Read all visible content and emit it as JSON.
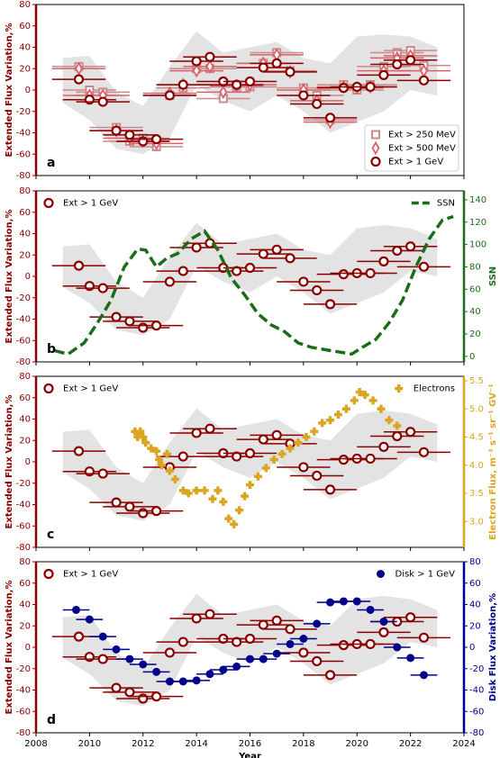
{
  "chart_data": [
    {
      "type": "scatter",
      "label": "a",
      "ylabel": "Extended Flux Variation,%",
      "ycolor": "#8b0000",
      "xlim": [
        2008,
        2024
      ],
      "xticks": [
        2008,
        2010,
        2012,
        2014,
        2016,
        2018,
        2020,
        2022,
        2024
      ],
      "ylim": [
        -80,
        80
      ],
      "yticks": [
        -80,
        -60,
        -40,
        -20,
        0,
        20,
        40,
        60,
        80
      ],
      "legend_loc": "lower right",
      "band": {
        "x": [
          2009,
          2010,
          2011,
          2012,
          2013,
          2014,
          2015,
          2016,
          2017,
          2018,
          2019,
          2020,
          2021,
          2022,
          2023
        ],
        "upper": [
          30,
          32,
          -2,
          -15,
          22,
          55,
          35,
          40,
          45,
          30,
          25,
          50,
          52,
          50,
          40
        ],
        "lower": [
          -12,
          -28,
          -55,
          -60,
          -45,
          5,
          -10,
          -20,
          -5,
          -20,
          -40,
          -30,
          -20,
          0,
          -5
        ]
      },
      "series": [
        {
          "name": "Ext > 250 MeV",
          "color": "#c98a8a",
          "type": "errorbar",
          "marker": "square-open",
          "xerr": 1,
          "yerr": 4,
          "x": [
            2009.6,
            2010.0,
            2010.5,
            2011.0,
            2011.5,
            2012.0,
            2012.5,
            2013.0,
            2013.5,
            2014.0,
            2014.5,
            2015.0,
            2015.5,
            2016.0,
            2016.5,
            2017.0,
            2017.5,
            2018.0,
            2018.5,
            2019.0,
            2019.5,
            2020.0,
            2020.5,
            2021.0,
            2021.5,
            2022.0,
            2022.5
          ],
          "values": [
            22,
            0,
            -2,
            -35,
            -48,
            -45,
            -53,
            -5,
            2,
            20,
            20,
            -8,
            3,
            3,
            25,
            35,
            18,
            2,
            -5,
            -28,
            5,
            0,
            5,
            22,
            35,
            37,
            23
          ]
        },
        {
          "name": "Ext > 500 MeV",
          "color": "#d9606a",
          "type": "errorbar",
          "marker": "diamond",
          "xerr": 1,
          "yerr": 4,
          "x": [
            2009.6,
            2010.0,
            2010.5,
            2011.0,
            2011.5,
            2012.0,
            2012.5,
            2013.0,
            2013.5,
            2014.0,
            2014.5,
            2015.0,
            2015.5,
            2016.0,
            2016.5,
            2017.0,
            2017.5,
            2018.0,
            2018.5,
            2019.0,
            2019.5,
            2020.0,
            2020.5,
            2021.0,
            2021.5,
            2022.0,
            2022.5
          ],
          "values": [
            20,
            -5,
            -5,
            -38,
            -45,
            -48,
            -50,
            -3,
            5,
            18,
            22,
            -2,
            4,
            5,
            25,
            33,
            17,
            0,
            -10,
            -30,
            3,
            2,
            3,
            18,
            30,
            32,
            18
          ]
        },
        {
          "name": "Ext > 1 GeV",
          "color": "#8b0000",
          "type": "errorbar",
          "marker": "circle-open",
          "xerr": 1,
          "yerr": 4,
          "x": [
            2009.6,
            2010.0,
            2010.5,
            2011.0,
            2011.5,
            2012.0,
            2012.5,
            2013.0,
            2013.5,
            2014.0,
            2014.5,
            2015.0,
            2015.5,
            2016.0,
            2016.5,
            2017.0,
            2017.5,
            2018.0,
            2018.5,
            2019.0,
            2019.5,
            2020.0,
            2020.5,
            2021.0,
            2021.5,
            2022.0,
            2022.5
          ],
          "values": [
            10,
            -9,
            -11,
            -38,
            -42,
            -48,
            -46,
            -5,
            5,
            27,
            31,
            8,
            5,
            8,
            21,
            25,
            17,
            -5,
            -13,
            -26,
            2,
            3,
            3,
            14,
            24,
            28,
            9
          ]
        }
      ]
    },
    {
      "type": "scatter",
      "label": "b",
      "ylabel": "Extended Flux Variation,%",
      "ycolor": "#8b0000",
      "y2label": "SSN",
      "y2color": "#1a6e1a",
      "xlim": [
        2008,
        2024
      ],
      "xticks": [
        2008,
        2010,
        2012,
        2014,
        2016,
        2018,
        2020,
        2022,
        2024
      ],
      "ylim": [
        -80,
        80
      ],
      "yticks": [
        -80,
        -60,
        -40,
        -20,
        0,
        20,
        40,
        60,
        80
      ],
      "y2lim": [
        -5,
        148
      ],
      "y2ticks": [
        0,
        20,
        40,
        60,
        80,
        100,
        120,
        140
      ],
      "legend_loc": "upper left",
      "legend2_loc": "upper right",
      "band": {
        "x": [
          2009,
          2010,
          2011,
          2012,
          2013,
          2014,
          2015,
          2016,
          2017,
          2018,
          2019,
          2020,
          2021,
          2022,
          2023
        ],
        "upper": [
          28,
          30,
          -5,
          -20,
          18,
          50,
          30,
          35,
          40,
          25,
          20,
          45,
          48,
          45,
          35
        ],
        "lower": [
          -10,
          -25,
          -50,
          -55,
          -40,
          10,
          -5,
          -15,
          0,
          -15,
          -35,
          -25,
          -15,
          5,
          0
        ]
      },
      "series": [
        {
          "name": "Ext > 1 GeV",
          "color": "#8b0000",
          "type": "errorbar",
          "marker": "circle-open",
          "xerr": 1,
          "yerr": 4,
          "x": [
            2009.6,
            2010.0,
            2010.5,
            2011.0,
            2011.5,
            2012.0,
            2012.5,
            2013.0,
            2013.5,
            2014.0,
            2014.5,
            2015.0,
            2015.5,
            2016.0,
            2016.5,
            2017.0,
            2017.5,
            2018.0,
            2018.5,
            2019.0,
            2019.5,
            2020.0,
            2020.5,
            2021.0,
            2021.5,
            2022.0,
            2022.5
          ],
          "values": [
            10,
            -9,
            -11,
            -38,
            -42,
            -48,
            -46,
            -5,
            5,
            27,
            31,
            8,
            5,
            8,
            21,
            25,
            17,
            -5,
            -13,
            -26,
            2,
            3,
            3,
            14,
            24,
            28,
            9
          ]
        },
        {
          "name": "SSN",
          "color": "#1a6e1a",
          "type": "line",
          "axis": "y2",
          "x": [
            2008.7,
            2009.2,
            2009.8,
            2010.3,
            2010.8,
            2011.3,
            2011.8,
            2012.1,
            2012.5,
            2012.9,
            2013.3,
            2013.8,
            2014.3,
            2014.8,
            2015.3,
            2015.8,
            2016.3,
            2016.8,
            2017.3,
            2017.8,
            2018.3,
            2018.8,
            2019.3,
            2019.8,
            2020.2,
            2020.7,
            2021.2,
            2021.7,
            2022.2,
            2022.7,
            2023.2,
            2023.6
          ],
          "values": [
            5,
            2,
            12,
            30,
            50,
            80,
            96,
            95,
            80,
            88,
            92,
            105,
            112,
            95,
            70,
            55,
            38,
            28,
            22,
            12,
            8,
            6,
            4,
            2,
            8,
            15,
            30,
            50,
            80,
            105,
            122,
            125
          ]
        }
      ]
    },
    {
      "type": "scatter",
      "label": "c",
      "ylabel": "Extended Flux Variation,%",
      "ycolor": "#8b0000",
      "y2label": "Electron Flux, m⁻² s⁻¹ sr⁻¹ GV⁻¹",
      "y2color": "#daa520",
      "xlim": [
        2008,
        2024
      ],
      "xticks": [
        2008,
        2010,
        2012,
        2014,
        2016,
        2018,
        2020,
        2022,
        2024
      ],
      "ylim": [
        -80,
        80
      ],
      "yticks": [
        -80,
        -60,
        -40,
        -20,
        0,
        20,
        40,
        60,
        80
      ],
      "y2lim": [
        2.54,
        5.58
      ],
      "y2ticks": [
        {
          "value": 3,
          "label": "3.0"
        },
        3.5,
        {
          "value": 4,
          "label": "4.0"
        },
        4.5,
        {
          "value": 5,
          "label": "5.0"
        },
        5.5
      ],
      "legend_loc": "upper left",
      "legend2_loc": "upper right",
      "band": {
        "x": [
          2009,
          2010,
          2011,
          2012,
          2013,
          2014,
          2015,
          2016,
          2017,
          2018,
          2019,
          2020,
          2021,
          2022,
          2023
        ],
        "upper": [
          28,
          30,
          -5,
          -20,
          18,
          50,
          30,
          35,
          40,
          25,
          20,
          45,
          48,
          45,
          35
        ],
        "lower": [
          -10,
          -25,
          -50,
          -55,
          -40,
          10,
          -5,
          -15,
          0,
          -15,
          -35,
          -25,
          -15,
          5,
          0
        ]
      },
      "series": [
        {
          "name": "Ext > 1 GeV",
          "color": "#8b0000",
          "type": "errorbar",
          "marker": "circle-open",
          "xerr": 1,
          "yerr": 4,
          "x": [
            2009.6,
            2010.0,
            2010.5,
            2011.0,
            2011.5,
            2012.0,
            2012.5,
            2013.0,
            2013.5,
            2014.0,
            2014.5,
            2015.0,
            2015.5,
            2016.0,
            2016.5,
            2017.0,
            2017.5,
            2018.0,
            2018.5,
            2019.0,
            2019.5,
            2020.0,
            2020.5,
            2021.0,
            2021.5,
            2022.0,
            2022.5
          ],
          "values": [
            10,
            -9,
            -11,
            -38,
            -42,
            -48,
            -46,
            -5,
            5,
            27,
            31,
            8,
            5,
            8,
            21,
            25,
            17,
            -5,
            -13,
            -26,
            2,
            3,
            3,
            14,
            24,
            28,
            9
          ]
        },
        {
          "name": "Electrons",
          "color": "#daa520",
          "type": "points",
          "marker": "plus",
          "axis": "y2",
          "x": [
            2011.7,
            2011.8,
            2011.9,
            2012.0,
            2012.1,
            2012.3,
            2012.5,
            2012.6,
            2012.7,
            2012.9,
            2013.0,
            2013.2,
            2013.5,
            2013.7,
            2014.0,
            2014.3,
            2014.6,
            2014.8,
            2015.0,
            2015.2,
            2015.4,
            2015.6,
            2015.8,
            2016.0,
            2016.3,
            2016.6,
            2016.9,
            2017.2,
            2017.5,
            2017.8,
            2018.1,
            2018.4,
            2018.7,
            2019.0,
            2019.3,
            2019.6,
            2019.9,
            2020.1,
            2020.3,
            2020.6,
            2020.9,
            2021.2,
            2021.5
          ],
          "values": [
            4.6,
            4.5,
            4.6,
            4.5,
            4.4,
            4.3,
            4.25,
            4.1,
            4.0,
            4.2,
            3.9,
            3.75,
            3.55,
            3.5,
            3.55,
            3.55,
            3.4,
            3.55,
            3.35,
            3.05,
            2.95,
            3.2,
            3.45,
            3.65,
            3.8,
            3.95,
            4.1,
            4.2,
            4.3,
            4.4,
            4.5,
            4.6,
            4.75,
            4.8,
            4.9,
            5.0,
            5.15,
            5.3,
            5.25,
            5.15,
            5.0,
            4.8,
            4.7
          ]
        }
      ]
    },
    {
      "type": "scatter",
      "label": "d",
      "ylabel": "Extended Flux Variation,%",
      "ycolor": "#8b0000",
      "y2label": "Disk Flux Variation,%",
      "y2color": "#00008b",
      "xlabel": "Year",
      "xlim": [
        2008,
        2024
      ],
      "xticks": [
        2008,
        2010,
        2012,
        2014,
        2016,
        2018,
        2020,
        2022,
        2024
      ],
      "ylim": [
        -80,
        80
      ],
      "yticks": [
        -80,
        -60,
        -40,
        -20,
        0,
        20,
        40,
        60,
        80
      ],
      "y2lim": [
        -80,
        80
      ],
      "y2ticks": [
        -80,
        -60,
        -40,
        -20,
        0,
        20,
        40,
        60,
        80
      ],
      "legend_loc": "upper left",
      "legend2_loc": "upper right",
      "band": {
        "x": [
          2009,
          2010,
          2011,
          2012,
          2013,
          2014,
          2015,
          2016,
          2017,
          2018,
          2019,
          2020,
          2021,
          2022,
          2023
        ],
        "upper": [
          28,
          30,
          -5,
          -20,
          18,
          50,
          30,
          35,
          40,
          25,
          20,
          45,
          48,
          45,
          35
        ],
        "lower": [
          -10,
          -25,
          -50,
          -55,
          -40,
          10,
          -5,
          -15,
          0,
          -15,
          -35,
          -25,
          -15,
          5,
          0
        ]
      },
      "series": [
        {
          "name": "Ext > 1 GeV",
          "color": "#8b0000",
          "type": "errorbar",
          "marker": "circle-open",
          "xerr": 1,
          "yerr": 4,
          "x": [
            2009.6,
            2010.0,
            2010.5,
            2011.0,
            2011.5,
            2012.0,
            2012.5,
            2013.0,
            2013.5,
            2014.0,
            2014.5,
            2015.0,
            2015.5,
            2016.0,
            2016.5,
            2017.0,
            2017.5,
            2018.0,
            2018.5,
            2019.0,
            2019.5,
            2020.0,
            2020.5,
            2021.0,
            2021.5,
            2022.0,
            2022.5
          ],
          "values": [
            10,
            -9,
            -11,
            -38,
            -42,
            -48,
            -46,
            -5,
            5,
            27,
            31,
            8,
            5,
            8,
            21,
            25,
            17,
            -5,
            -13,
            -26,
            2,
            3,
            3,
            14,
            24,
            28,
            9
          ]
        },
        {
          "name": "Disk > 1 GeV",
          "color": "#00008b",
          "type": "errorbar",
          "marker": "circle",
          "xerr": 0.5,
          "axis": "y2",
          "x": [
            2009.5,
            2010.0,
            2010.5,
            2011.0,
            2011.5,
            2012.0,
            2012.5,
            2013.0,
            2013.5,
            2014.0,
            2014.5,
            2015.0,
            2015.5,
            2016.0,
            2016.5,
            2017.0,
            2017.5,
            2018.0,
            2018.5,
            2019.0,
            2019.5,
            2020.0,
            2020.5,
            2021.0,
            2021.5,
            2022.0,
            2022.5
          ],
          "values": [
            35,
            26,
            10,
            -2,
            -11,
            -16,
            -23,
            -32,
            -32,
            -31,
            -25,
            -21,
            -18,
            -11,
            -11,
            -6,
            3,
            8,
            22,
            42,
            43,
            43,
            35,
            24,
            0,
            -10,
            -26
          ]
        }
      ]
    }
  ]
}
